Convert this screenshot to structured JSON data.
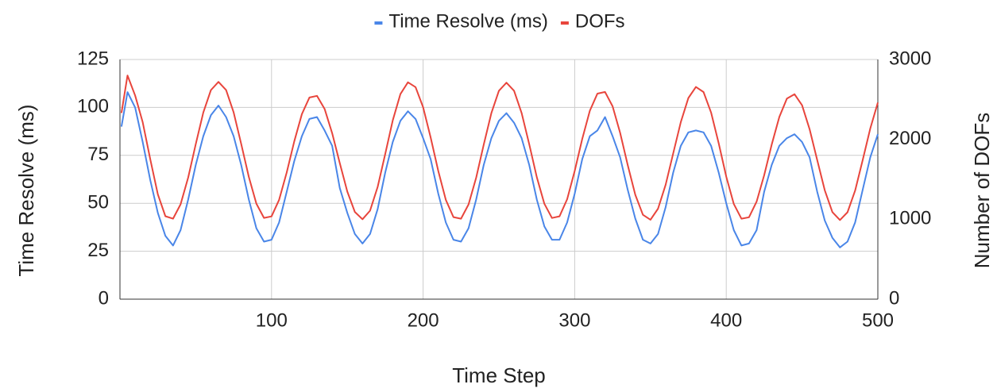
{
  "chart_data": {
    "type": "line",
    "xlabel": "Time Step",
    "ylabel": "Time Resolve (ms)",
    "y2label": "Number of DOFs",
    "legend": "top",
    "grid": true,
    "xlim": [
      0,
      500
    ],
    "xticks": [
      100,
      200,
      300,
      400,
      500
    ],
    "ylim": [
      0,
      125
    ],
    "yticks": [
      0,
      25,
      50,
      75,
      100,
      125
    ],
    "y2lim": [
      0,
      3000
    ],
    "y2ticks": [
      0,
      1000,
      2000,
      3000
    ],
    "x": [
      1,
      5,
      10,
      15,
      20,
      25,
      30,
      35,
      40,
      45,
      50,
      55,
      60,
      65,
      70,
      75,
      80,
      85,
      90,
      95,
      100,
      105,
      110,
      115,
      120,
      125,
      130,
      135,
      140,
      145,
      150,
      155,
      160,
      165,
      170,
      175,
      180,
      185,
      190,
      195,
      200,
      205,
      210,
      215,
      220,
      225,
      230,
      235,
      240,
      245,
      250,
      255,
      260,
      265,
      270,
      275,
      280,
      285,
      290,
      295,
      300,
      305,
      310,
      315,
      320,
      325,
      330,
      335,
      340,
      345,
      350,
      355,
      360,
      365,
      370,
      375,
      380,
      385,
      390,
      395,
      400,
      405,
      410,
      415,
      420,
      425,
      430,
      435,
      440,
      445,
      450,
      455,
      460,
      465,
      470,
      475,
      480,
      485,
      490,
      495,
      500
    ],
    "series": [
      {
        "name": "Time Resolve (ms)",
        "color": "#4a86e8",
        "values": [
          90,
          108,
          100,
          82,
          62,
          45,
          33,
          28,
          36,
          52,
          70,
          85,
          96,
          101,
          95,
          85,
          70,
          52,
          37,
          30,
          31,
          40,
          56,
          72,
          85,
          94,
          95,
          88,
          80,
          58,
          45,
          34,
          29,
          34,
          47,
          66,
          82,
          93,
          98,
          94,
          84,
          73,
          55,
          40,
          31,
          30,
          37,
          52,
          70,
          84,
          93,
          97,
          92,
          84,
          70,
          52,
          38,
          31,
          31,
          40,
          55,
          73,
          85,
          88,
          95,
          85,
          74,
          57,
          42,
          31,
          29,
          34,
          48,
          66,
          80,
          87,
          88,
          87,
          80,
          66,
          50,
          36,
          28,
          29,
          36,
          56,
          70,
          80,
          84,
          86,
          82,
          74,
          56,
          41,
          32,
          27,
          30,
          40,
          57,
          74,
          86
        ]
      },
      {
        "name": "DOFs",
        "color": "#e8453c",
        "axis": "y2",
        "values": [
          2330,
          2800,
          2550,
          2216,
          1749,
          1312,
          1038,
          1007,
          1187,
          1524,
          1940,
          2336,
          2618,
          2720,
          2619,
          2338,
          1944,
          1531,
          1196,
          1017,
          1036,
          1243,
          1585,
          1975,
          2317,
          2524,
          2545,
          2382,
          2078,
          1704,
          1346,
          1092,
          1000,
          1108,
          1406,
          1817,
          2238,
          2567,
          2715,
          2654,
          2403,
          2024,
          1604,
          1243,
          1027,
          1007,
          1186,
          1521,
          1934,
          2328,
          2609,
          2710,
          2609,
          2330,
          1939,
          1528,
          1195,
          1016,
          1037,
          1251,
          1604,
          2006,
          2359,
          2573,
          2594,
          2415,
          2082,
          1678,
          1306,
          1056,
          994,
          1132,
          1432,
          1825,
          2217,
          2518,
          2656,
          2593,
          2336,
          1951,
          1534,
          1191,
          1007,
          1025,
          1221,
          1551,
          1935,
          2281,
          2510,
          2566,
          2428,
          2128,
          1741,
          1363,
          1090,
          990,
          1088,
          1359,
          1739,
          2137,
          2461
        ]
      }
    ]
  }
}
